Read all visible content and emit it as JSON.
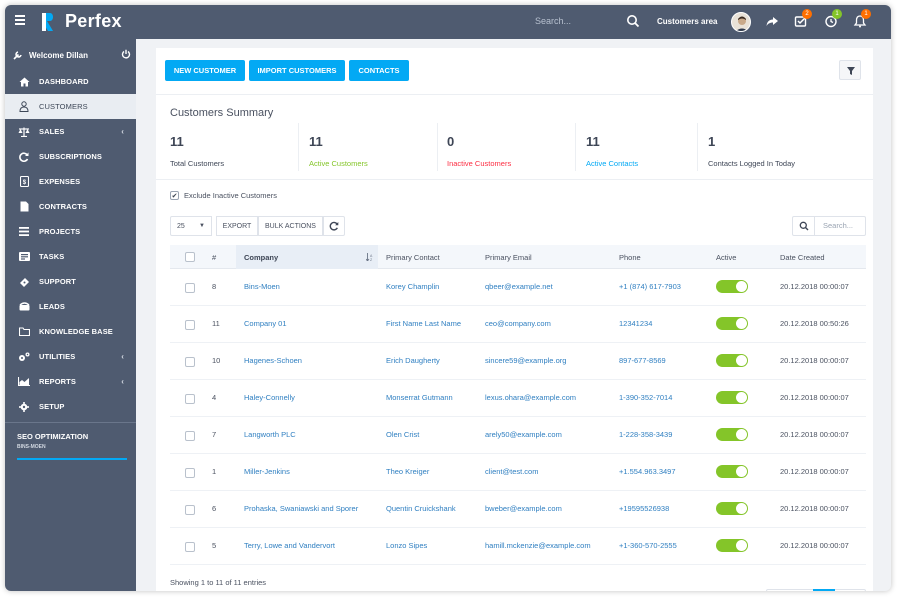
{
  "header": {
    "brand": "Perfex",
    "search_placeholder": "Search...",
    "customers_area": "Customers area",
    "badges": {
      "tasks": "2",
      "timers": "1",
      "notifications": "1"
    }
  },
  "sidebar": {
    "welcome": "Welcome Dillan",
    "items": [
      {
        "label": "DASHBOARD",
        "icon": "home-icon"
      },
      {
        "label": "CUSTOMERS",
        "icon": "user-icon"
      },
      {
        "label": "SALES",
        "icon": "balance-icon"
      },
      {
        "label": "SUBSCRIPTIONS",
        "icon": "refresh-icon"
      },
      {
        "label": "EXPENSES",
        "icon": "receipt-icon"
      },
      {
        "label": "CONTRACTS",
        "icon": "file-icon"
      },
      {
        "label": "PROJECTS",
        "icon": "bars-icon"
      },
      {
        "label": "TASKS",
        "icon": "tasks-icon"
      },
      {
        "label": "SUPPORT",
        "icon": "ticket-icon"
      },
      {
        "label": "LEADS",
        "icon": "tty-icon"
      },
      {
        "label": "KNOWLEDGE BASE",
        "icon": "folder-icon"
      },
      {
        "label": "UTILITIES",
        "icon": "cogs-icon"
      },
      {
        "label": "REPORTS",
        "icon": "chart-icon"
      },
      {
        "label": "SETUP",
        "icon": "gear-icon"
      }
    ],
    "seo_title": "SEO OPTIMIZATION",
    "seo_sub": "BINS-MOEN"
  },
  "actions": {
    "new_customer": "NEW CUSTOMER",
    "import_customers": "IMPORT CUSTOMERS",
    "contacts": "CONTACTS"
  },
  "summary": {
    "title": "Customers Summary",
    "stats": [
      {
        "value": "11",
        "label": "Total Customers",
        "color": "#3e4656"
      },
      {
        "value": "11",
        "label": "Active Customers",
        "color": "#84c529"
      },
      {
        "value": "0",
        "label": "Inactive Customers",
        "color": "#fc2d42"
      },
      {
        "value": "11",
        "label": "Active Contacts",
        "color": "#03a9f4"
      },
      {
        "value": "1",
        "label": "Contacts Logged In Today",
        "color": "#3e4656"
      }
    ]
  },
  "filters": {
    "exclude_inactive": "Exclude Inactive Customers",
    "page_length": "25",
    "export": "EXPORT",
    "bulk_actions": "BULK ACTIONS",
    "search_placeholder": "Search..."
  },
  "table": {
    "columns": [
      "#",
      "Company",
      "Primary Contact",
      "Primary Email",
      "Phone",
      "Active",
      "Date Created"
    ],
    "rows": [
      {
        "id": "8",
        "company": "Bins-Moen",
        "contact": "Korey Champlin",
        "email": "qbeer@example.net",
        "phone": "+1 (874) 617-7903",
        "date": "20.12.2018 00:00:07"
      },
      {
        "id": "11",
        "company": "Company 01",
        "contact": "First Name Last Name",
        "email": "ceo@company.com",
        "phone": "12341234",
        "date": "20.12.2018 00:50:26"
      },
      {
        "id": "10",
        "company": "Hagenes-Schoen",
        "contact": "Erich Daugherty",
        "email": "sincere59@example.org",
        "phone": "897-677-8569",
        "date": "20.12.2018 00:00:07"
      },
      {
        "id": "4",
        "company": "Haley-Connelly",
        "contact": "Monserrat Gutmann",
        "email": "lexus.ohara@example.com",
        "phone": "1-390-352-7014",
        "date": "20.12.2018 00:00:07"
      },
      {
        "id": "7",
        "company": "Langworth PLC",
        "contact": "Olen Crist",
        "email": "arely50@example.com",
        "phone": "1-228-358-3439",
        "date": "20.12.2018 00:00:07"
      },
      {
        "id": "1",
        "company": "Miller-Jenkins",
        "contact": "Theo Kreiger",
        "email": "client@test.com",
        "phone": "+1.554.963.3497",
        "date": "20.12.2018 00:00:07"
      },
      {
        "id": "6",
        "company": "Prohaska, Swaniawski and Sporer",
        "contact": "Quentin Cruickshank",
        "email": "bweber@example.com",
        "phone": "+19595526938",
        "date": "20.12.2018 00:00:07"
      },
      {
        "id": "5",
        "company": "Terry, Lowe and Vandervort",
        "contact": "Lonzo Sipes",
        "email": "hamill.mckenzie@example.com",
        "phone": "+1-360-570-2555",
        "date": "20.12.2018 00:00:07"
      }
    ],
    "showing": "Showing 1 to 11 of 11 entries"
  }
}
